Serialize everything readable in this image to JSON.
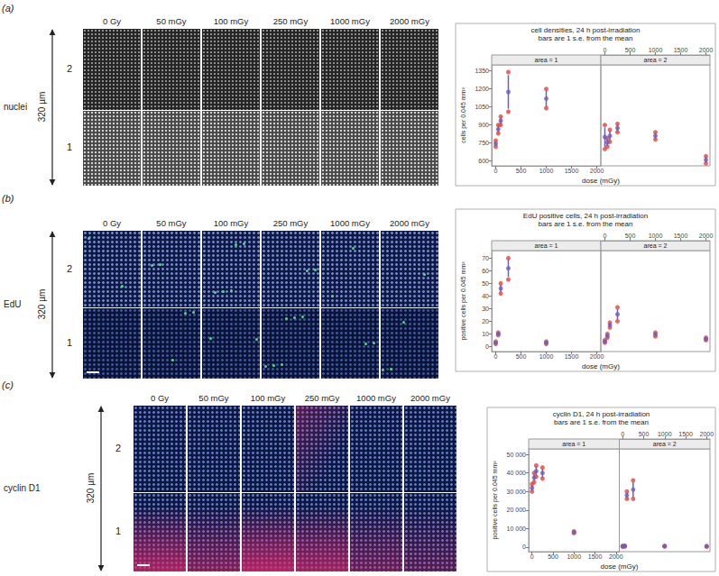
{
  "figure": {
    "doses": [
      "0 Gy",
      "50 mGy",
      "100 mGy",
      "250 mGy",
      "1000 mGy",
      "2000 mGy"
    ],
    "scale_label": "320 µm",
    "area_labels": [
      "2",
      "1"
    ],
    "panels": [
      {
        "label": "(a)",
        "stain": "nuclei"
      },
      {
        "label": "(b)",
        "stain": "EdU"
      },
      {
        "label": "(c)",
        "stain": "cyclin D1"
      }
    ]
  },
  "chart_data": [
    {
      "type": "scatter",
      "title": "cell densities, 24 h post-irradiation",
      "subtitle": "bars are 1 s.e. from the mean",
      "x_label": "dose (mGy)",
      "y_label": "cells per 0.045 mm²",
      "xlim": [
        -80,
        2080
      ],
      "xticks": [
        0,
        500,
        1000,
        1500,
        2000
      ],
      "ylim": [
        560,
        1400
      ],
      "yticks": [
        600,
        750,
        900,
        1050,
        1200,
        1350
      ],
      "grid": false,
      "facets": [
        {
          "label": "area = 1",
          "series": [
            {
              "type": "scatter",
              "color": "#e0443c",
              "x": [
                0,
                0,
                50,
                50,
                100,
                100,
                250,
                250,
                1000,
                1000
              ],
              "values": [
                720,
                770,
                830,
                900,
                900,
                970,
                1010,
                1340,
                1040,
                1200
              ]
            },
            {
              "type": "errorbar",
              "color": "#6a5ec0",
              "x": [
                0,
                50,
                100,
                250,
                1000
              ],
              "values": [
                745,
                865,
                935,
                1175,
                1120
              ],
              "se": [
                20,
                30,
                30,
                140,
                70
              ]
            }
          ]
        },
        {
          "label": "area = 2",
          "series": [
            {
              "type": "scatter",
              "color": "#e0443c",
              "x": [
                0,
                0,
                50,
                50,
                100,
                100,
                250,
                250,
                1000,
                1000,
                2000,
                2000
              ],
              "values": [
                700,
                900,
                720,
                790,
                760,
                860,
                840,
                910,
                780,
                840,
                580,
                640
              ]
            },
            {
              "type": "errorbar",
              "color": "#6a5ec0",
              "x": [
                0,
                50,
                100,
                250,
                1000,
                2000
              ],
              "values": [
                800,
                755,
                810,
                875,
                810,
                610
              ],
              "se": [
                80,
                30,
                40,
                30,
                25,
                25
              ]
            }
          ]
        }
      ]
    },
    {
      "type": "scatter",
      "title": "EdU positive cells, 24 h post-irradiation",
      "subtitle": "bars are 1 s.e. from the mean",
      "x_label": "dose (mGy)",
      "y_label": "positive cells per 0.045 mm²",
      "xlim": [
        -80,
        2080
      ],
      "xticks": [
        0,
        500,
        1000,
        1500,
        2000
      ],
      "ylim": [
        -4,
        76
      ],
      "yticks": [
        0,
        10,
        20,
        30,
        40,
        50,
        60,
        70
      ],
      "grid": false,
      "facets": [
        {
          "label": "area = 1",
          "series": [
            {
              "type": "scatter",
              "color": "#e0443c",
              "x": [
                0,
                0,
                50,
                50,
                100,
                100,
                250,
                250,
                1000,
                1000
              ],
              "values": [
                2,
                4,
                9,
                11,
                42,
                50,
                53,
                70,
                2,
                4
              ]
            },
            {
              "type": "errorbar",
              "color": "#6a5ec0",
              "x": [
                0,
                50,
                100,
                250,
                1000
              ],
              "values": [
                3,
                10,
                46,
                62,
                3
              ],
              "se": [
                0.6,
                0.6,
                3,
                7,
                0.6
              ]
            }
          ]
        },
        {
          "label": "area = 2",
          "series": [
            {
              "type": "scatter",
              "color": "#e0443c",
              "x": [
                0,
                0,
                50,
                50,
                100,
                100,
                250,
                250,
                1000,
                1000,
                2000,
                2000
              ],
              "values": [
                3,
                5,
                7,
                10,
                15,
                19,
                20,
                31,
                8,
                11,
                5,
                7
              ]
            },
            {
              "type": "errorbar",
              "color": "#6a5ec0",
              "x": [
                0,
                50,
                100,
                250,
                1000,
                2000
              ],
              "values": [
                4,
                8.5,
                17,
                25.5,
                9.5,
                6
              ],
              "se": [
                0.6,
                1,
                1.5,
                4,
                1,
                0.6
              ]
            }
          ]
        }
      ]
    },
    {
      "type": "scatter",
      "title": "cyclin D1, 24 h post-irradiation",
      "subtitle": "bars are 1 s.e. from the mean",
      "x_label": "dose (mGy)",
      "y_label": "positive cells per 0.045 mm²",
      "xlim": [
        -80,
        2080
      ],
      "xticks": [
        0,
        500,
        1000,
        1500,
        2000
      ],
      "ylim": [
        -2500,
        53000
      ],
      "yticks": [
        0,
        {
          "value": 10000,
          "label": "10 000"
        },
        {
          "value": 20000,
          "label": "20 000"
        },
        {
          "value": 30000,
          "label": "30 000"
        },
        {
          "value": 40000,
          "label": "40 000"
        },
        {
          "value": 50000,
          "label": "50 000"
        }
      ],
      "grid": false,
      "facets": [
        {
          "label": "area = 1",
          "series": [
            {
              "type": "scatter",
              "color": "#e0443c",
              "x": [
                0,
                0,
                50,
                50,
                100,
                100,
                250,
                250,
                1000,
                1000
              ],
              "values": [
                30000,
                34000,
                35000,
                40000,
                38000,
                44000,
                37000,
                43000,
                7500,
                8500
              ]
            },
            {
              "type": "errorbar",
              "color": "#6a5ec0",
              "x": [
                0,
                50,
                100,
                250,
                1000
              ],
              "values": [
                32000,
                37500,
                41000,
                40000,
                8000
              ],
              "se": [
                1500,
                2000,
                2500,
                2500,
                400
              ]
            }
          ]
        },
        {
          "label": "area = 2",
          "series": [
            {
              "type": "scatter",
              "color": "#e0443c",
              "x": [
                0,
                0,
                50,
                50,
                100,
                100,
                250,
                250,
                1000,
                1000,
                2000,
                2000
              ],
              "values": [
                200,
                600,
                300,
                700,
                26000,
                30000,
                26000,
                36000,
                300,
                600,
                200,
                500
              ]
            },
            {
              "type": "errorbar",
              "color": "#6a5ec0",
              "x": [
                0,
                50,
                100,
                250,
                1000,
                2000
              ],
              "values": [
                400,
                500,
                28000,
                31000,
                450,
                350
              ],
              "se": [
                150,
                150,
                1500,
                4000,
                120,
                120
              ]
            }
          ]
        }
      ]
    }
  ]
}
